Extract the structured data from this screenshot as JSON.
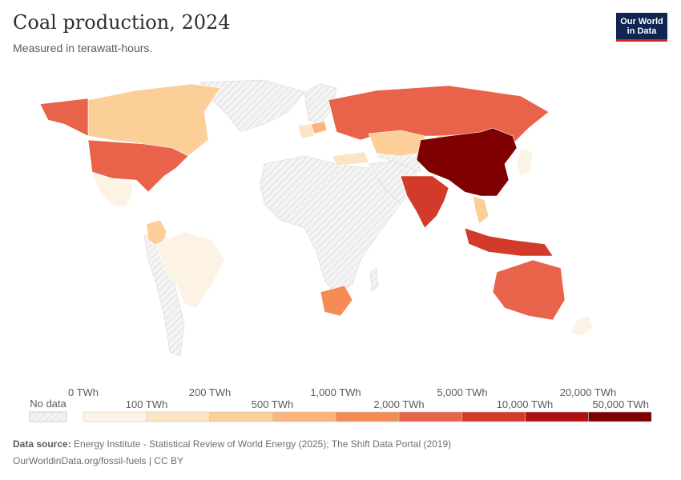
{
  "title": "Coal production, 2024",
  "subtitle": "Measured in terawatt-hours.",
  "logo": {
    "line1": "Our World",
    "line2": "in Data"
  },
  "legend": {
    "no_data_label": "No data",
    "top_labels": [
      "0 TWh",
      "200 TWh",
      "1,000 TWh",
      "5,000 TWh",
      "20,000 TWh"
    ],
    "bottom_labels": [
      "100 TWh",
      "500 TWh",
      "2,000 TWh",
      "10,000 TWh",
      "50,000 TWh"
    ],
    "colors": [
      "#fdf3e5",
      "#fde4c2",
      "#fcce98",
      "#fbb47c",
      "#f58c55",
      "#e8634a",
      "#d23a2a",
      "#b01010",
      "#7f0000"
    ]
  },
  "countries": [
    {
      "name": "China",
      "bin": 8
    },
    {
      "name": "India",
      "bin": 6
    },
    {
      "name": "Indonesia",
      "bin": 6
    },
    {
      "name": "United States",
      "bin": 5
    },
    {
      "name": "Australia",
      "bin": 5
    },
    {
      "name": "Russia",
      "bin": 5
    },
    {
      "name": "South Africa",
      "bin": 4
    },
    {
      "name": "Kazakhstan",
      "bin": 2
    },
    {
      "name": "Canada",
      "bin": 2
    },
    {
      "name": "Colombia",
      "bin": 2
    },
    {
      "name": "Mongolia",
      "bin": 2
    },
    {
      "name": "Poland",
      "bin": 3
    },
    {
      "name": "Turkey",
      "bin": 1
    },
    {
      "name": "Germany",
      "bin": 1
    },
    {
      "name": "Vietnam",
      "bin": 2
    },
    {
      "name": "Mexico",
      "bin": 0
    },
    {
      "name": "Brazil",
      "bin": 0
    },
    {
      "name": "Japan",
      "bin": 0
    },
    {
      "name": "New Zealand",
      "bin": 0
    }
  ],
  "source": {
    "label": "Data source:",
    "text": "Energy Institute - Statistical Review of World Energy (2025); The Shift Data Portal (2019)"
  },
  "footer": "OurWorldinData.org/fossil-fuels | CC BY"
}
